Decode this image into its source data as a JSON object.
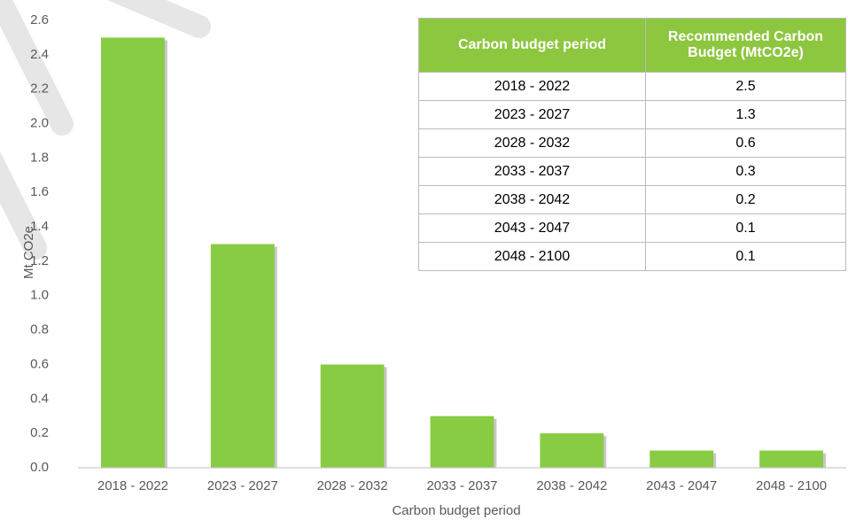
{
  "chart_data": {
    "type": "bar",
    "categories": [
      "2018 - 2022",
      "2023 - 2027",
      "2028 - 2032",
      "2033 - 2037",
      "2038 - 2042",
      "2043 - 2047",
      "2048 - 2100"
    ],
    "values": [
      2.5,
      1.3,
      0.6,
      0.3,
      0.2,
      0.1,
      0.1
    ],
    "color": "#88cc44",
    "x_label": "Carbon budget period",
    "y_label": "Mt CO2e",
    "ylim": [
      0,
      2.6
    ],
    "yticks": [
      {
        "value": 0,
        "label": "0.0"
      },
      0.2,
      0.4,
      0.6,
      0.8,
      {
        "value": 1,
        "label": "1.0"
      },
      1.2,
      1.4,
      1.6,
      1.8,
      {
        "value": 2,
        "label": "2.0"
      },
      2.2,
      2.4,
      2.6
    ],
    "grid": false
  },
  "table": {
    "header": [
      "Carbon budget period",
      "Recommended Carbon Budget (MtCO2e)"
    ],
    "rows": [
      [
        "2018 - 2022",
        "2.5"
      ],
      [
        "2023 - 2027",
        "1.3"
      ],
      [
        "2028 - 2032",
        "0.6"
      ],
      [
        "2033 - 2037",
        "0.3"
      ],
      [
        "2038 - 2042",
        "0.2"
      ],
      [
        "2043 - 2047",
        "0.1"
      ],
      [
        "2048 - 2100",
        "0.1"
      ]
    ]
  }
}
